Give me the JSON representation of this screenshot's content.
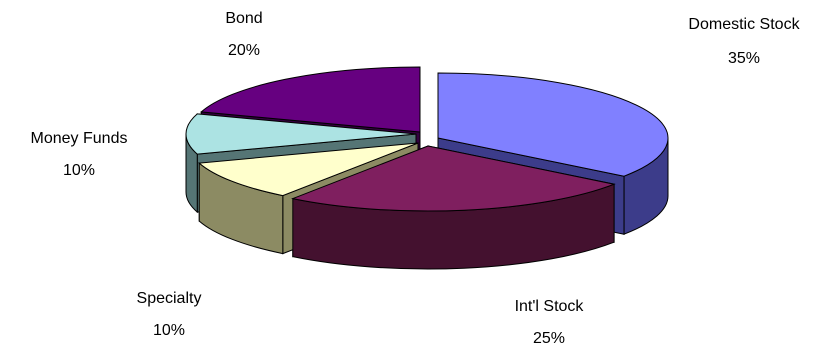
{
  "chart_data": {
    "type": "pie",
    "title": "",
    "style": "3d-exploded",
    "slices": [
      {
        "label": "Domestic Stock",
        "value": 35,
        "value_label": "35%",
        "top_color": "#8080ff",
        "side_color": "#3c3c8a"
      },
      {
        "label": "Int'l Stock",
        "value": 25,
        "value_label": "25%",
        "top_color": "#7f1f5f",
        "side_color": "#44112f"
      },
      {
        "label": "Specialty",
        "value": 10,
        "value_label": "10%",
        "top_color": "#ffffcc",
        "side_color": "#8c8b63"
      },
      {
        "label": "Money Funds",
        "value": 10,
        "value_label": "10%",
        "top_color": "#ace3e3",
        "side_color": "#557575"
      },
      {
        "label": "Bond",
        "value": 20,
        "value_label": "20%",
        "top_color": "#660080",
        "side_color": "#33003f"
      }
    ]
  }
}
